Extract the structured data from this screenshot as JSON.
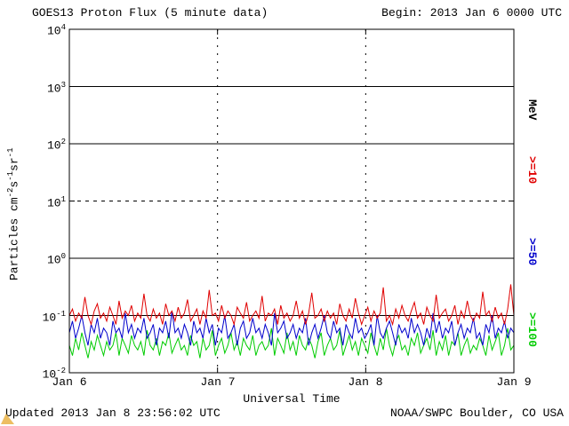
{
  "header": {
    "title": "GOES13 Proton Flux (5 minute data)",
    "begin_label": "Begin: 2013 Jan 6 0000 UTC"
  },
  "footer": {
    "updated": "Updated 2013 Jan  8 23:56:02 UTC",
    "credit": "NOAA/SWPC Boulder, CO USA"
  },
  "colors": {
    "axis": "#000000",
    "background": "#ffffff",
    "red": "#e00000",
    "blue": "#0000cc",
    "green": "#00cc00",
    "artifact": "#edbe62"
  },
  "right_labels": [
    {
      "text": "MeV",
      "color": "#000000"
    },
    {
      "text": ">=10",
      "color": "#e00000"
    },
    {
      "text": ">=50",
      "color": "#0000cc"
    },
    {
      "text": ">=100",
      "color": "#00cc00"
    }
  ],
  "chart_data": {
    "type": "line",
    "title": "GOES13 Proton Flux (5 minute data)",
    "xlabel": "Universal Time",
    "ylabel_parts": [
      {
        "text": "Particles cm"
      },
      {
        "sup": "-2"
      },
      {
        "text": "s"
      },
      {
        "sup": "-1"
      },
      {
        "text": "sr"
      },
      {
        "sup": "-1"
      }
    ],
    "x_tick_labels": [
      "Jan 6",
      "Jan 7",
      "Jan 8",
      "Jan 9"
    ],
    "x_range_days": [
      0,
      3
    ],
    "y_scale": "log10",
    "ylim": [
      0.01,
      10000
    ],
    "y_tick_exponents": [
      4,
      3,
      2,
      1,
      0,
      -1,
      -2
    ],
    "solid_gridlines_at": [
      1000,
      100,
      1,
      0.1
    ],
    "dashed_gridlines_at": [
      10
    ],
    "vertical_dashed_at_days": [
      1,
      2
    ],
    "legend_position": "right-margin",
    "grid": true,
    "series": [
      {
        "name": ">=10 MeV",
        "color": "#e00000",
        "values": [
          0.1,
          0.13,
          0.08,
          0.11,
          0.09,
          0.21,
          0.1,
          0.07,
          0.12,
          0.16,
          0.09,
          0.11,
          0.08,
          0.14,
          0.1,
          0.07,
          0.18,
          0.09,
          0.12,
          0.1,
          0.15,
          0.08,
          0.11,
          0.09,
          0.24,
          0.1,
          0.08,
          0.13,
          0.09,
          0.11,
          0.07,
          0.16,
          0.1,
          0.12,
          0.08,
          0.14,
          0.09,
          0.11,
          0.19,
          0.08,
          0.1,
          0.13,
          0.07,
          0.12,
          0.09,
          0.28,
          0.1,
          0.11,
          0.08,
          0.15,
          0.09,
          0.12,
          0.1,
          0.07,
          0.14,
          0.11,
          0.09,
          0.17,
          0.08,
          0.1,
          0.12,
          0.09,
          0.22,
          0.08,
          0.11,
          0.1,
          0.13,
          0.07,
          0.15,
          0.09,
          0.11,
          0.08,
          0.1,
          0.18,
          0.09,
          0.12,
          0.07,
          0.11,
          0.25,
          0.09,
          0.1,
          0.13,
          0.08,
          0.12,
          0.09,
          0.11,
          0.07,
          0.16,
          0.1,
          0.08,
          0.13,
          0.09,
          0.2,
          0.11,
          0.07,
          0.1,
          0.14,
          0.08,
          0.12,
          0.09,
          0.11,
          0.31,
          0.08,
          0.1,
          0.07,
          0.13,
          0.09,
          0.15,
          0.1,
          0.08,
          0.12,
          0.17,
          0.09,
          0.11,
          0.07,
          0.14,
          0.1,
          0.08,
          0.23,
          0.09,
          0.11,
          0.13,
          0.08,
          0.1,
          0.15,
          0.07,
          0.12,
          0.09,
          0.18,
          0.1,
          0.08,
          0.11,
          0.09,
          0.26,
          0.1,
          0.12,
          0.08,
          0.14,
          0.09,
          0.11,
          0.07,
          0.13,
          0.35,
          0.1
        ]
      },
      {
        "name": ">=50 MeV",
        "color": "#0000cc",
        "values": [
          0.05,
          0.08,
          0.04,
          0.06,
          0.1,
          0.05,
          0.03,
          0.07,
          0.05,
          0.09,
          0.04,
          0.06,
          0.05,
          0.03,
          0.08,
          0.05,
          0.06,
          0.04,
          0.11,
          0.05,
          0.07,
          0.04,
          0.06,
          0.05,
          0.09,
          0.04,
          0.05,
          0.07,
          0.03,
          0.06,
          0.05,
          0.08,
          0.04,
          0.12,
          0.05,
          0.06,
          0.04,
          0.07,
          0.05,
          0.03,
          0.08,
          0.05,
          0.06,
          0.04,
          0.09,
          0.05,
          0.07,
          0.03,
          0.06,
          0.05,
          0.1,
          0.04,
          0.05,
          0.07,
          0.03,
          0.06,
          0.08,
          0.04,
          0.05,
          0.09,
          0.05,
          0.06,
          0.04,
          0.07,
          0.05,
          0.03,
          0.11,
          0.05,
          0.06,
          0.08,
          0.04,
          0.05,
          0.07,
          0.04,
          0.06,
          0.05,
          0.09,
          0.03,
          0.05,
          0.07,
          0.04,
          0.06,
          0.1,
          0.05,
          0.04,
          0.08,
          0.05,
          0.06,
          0.03,
          0.07,
          0.05,
          0.04,
          0.09,
          0.05,
          0.06,
          0.04,
          0.05,
          0.07,
          0.03,
          0.1,
          0.05,
          0.04,
          0.06,
          0.08,
          0.05,
          0.03,
          0.07,
          0.05,
          0.06,
          0.04,
          0.09,
          0.05,
          0.07,
          0.05,
          0.03,
          0.06,
          0.04,
          0.11,
          0.05,
          0.08,
          0.04,
          0.06,
          0.05,
          0.08,
          0.03,
          0.05,
          0.07,
          0.04,
          0.06,
          0.05,
          0.09,
          0.04,
          0.05,
          0.03,
          0.07,
          0.05,
          0.1,
          0.04,
          0.06,
          0.05,
          0.08,
          0.04,
          0.06,
          0.05
        ]
      },
      {
        "name": ">=100 MeV",
        "color": "#00cc00",
        "values": [
          0.03,
          0.02,
          0.04,
          0.025,
          0.05,
          0.03,
          0.018,
          0.035,
          0.025,
          0.045,
          0.03,
          0.02,
          0.035,
          0.025,
          0.03,
          0.05,
          0.02,
          0.04,
          0.03,
          0.022,
          0.045,
          0.03,
          0.025,
          0.035,
          0.02,
          0.055,
          0.03,
          0.025,
          0.04,
          0.02,
          0.035,
          0.03,
          0.05,
          0.022,
          0.03,
          0.04,
          0.025,
          0.03,
          0.02,
          0.045,
          0.03,
          0.035,
          0.018,
          0.04,
          0.025,
          0.03,
          0.055,
          0.02,
          0.03,
          0.04,
          0.022,
          0.03,
          0.05,
          0.025,
          0.035,
          0.02,
          0.04,
          0.03,
          0.025,
          0.045,
          0.02,
          0.03,
          0.035,
          0.025,
          0.03,
          0.06,
          0.02,
          0.04,
          0.03,
          0.022,
          0.05,
          0.025,
          0.035,
          0.02,
          0.045,
          0.03,
          0.025,
          0.04,
          0.03,
          0.018,
          0.035,
          0.05,
          0.02,
          0.03,
          0.04,
          0.025,
          0.03,
          0.055,
          0.02,
          0.03,
          0.045,
          0.025,
          0.035,
          0.02,
          0.04,
          0.03,
          0.022,
          0.05,
          0.03,
          0.02,
          0.04,
          0.025,
          0.06,
          0.03,
          0.02,
          0.035,
          0.045,
          0.025,
          0.03,
          0.02,
          0.04,
          0.03,
          0.05,
          0.022,
          0.03,
          0.04,
          0.025,
          0.055,
          0.02,
          0.035,
          0.025,
          0.045,
          0.02,
          0.035,
          0.03,
          0.05,
          0.02,
          0.03,
          0.04,
          0.022,
          0.03,
          0.025,
          0.04,
          0.03,
          0.02,
          0.045,
          0.025,
          0.035,
          0.05,
          0.02,
          0.03,
          0.06,
          0.025,
          0.03
        ]
      }
    ]
  }
}
